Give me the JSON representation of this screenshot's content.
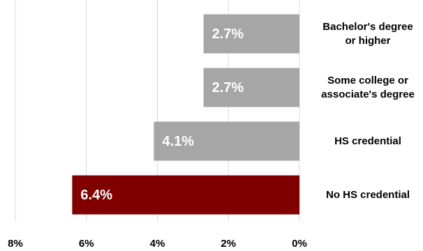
{
  "chart_data": {
    "type": "bar",
    "orientation": "horizontal",
    "x_reversed": true,
    "categories": [
      "Bachelor's degree\nor higher",
      "Some college or\nassociate's degree",
      "HS credential",
      "No HS credential"
    ],
    "values": [
      2.7,
      2.7,
      4.1,
      6.4
    ],
    "value_labels": [
      "2.7%",
      "2.7%",
      "4.1%",
      "6.4%"
    ],
    "colors": [
      "#a6a6a6",
      "#a6a6a6",
      "#a6a6a6",
      "#800000"
    ],
    "xlim": [
      0,
      8
    ],
    "xticks": [
      {
        "value": 8,
        "label": "8%"
      },
      {
        "value": 6,
        "label": "6%"
      },
      {
        "value": 4,
        "label": "4%"
      },
      {
        "value": 2,
        "label": "2%"
      },
      {
        "value": 0,
        "label": "0%"
      }
    ],
    "grid": true
  }
}
